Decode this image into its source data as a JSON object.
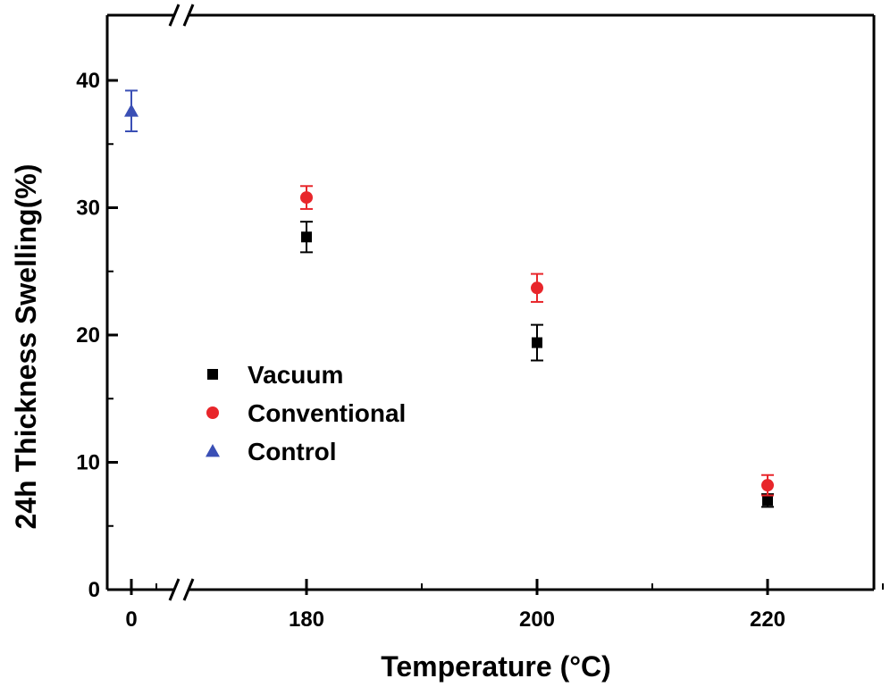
{
  "chart_data": {
    "type": "scatter",
    "title": "",
    "xlabel": "Temperature (°C)",
    "ylabel": "24h Thickness Swelling(%)",
    "ylim": [
      0,
      45
    ],
    "yticks": [
      0,
      10,
      20,
      30,
      40
    ],
    "xticks": [
      "0",
      "180",
      "200",
      "220"
    ],
    "axis_break": "between 0 and 180 on x-axis (top and bottom spines)",
    "legend_position": "middle-left",
    "series": [
      {
        "name": "Vacuum",
        "marker": "square",
        "color": "#000000",
        "points": [
          {
            "x": 180,
            "y": 27.7,
            "err": 1.2
          },
          {
            "x": 200,
            "y": 19.4,
            "err": 1.4
          },
          {
            "x": 220,
            "y": 7.0,
            "err": 0.5
          }
        ]
      },
      {
        "name": "Conventional",
        "marker": "circle",
        "color": "#e8262b",
        "points": [
          {
            "x": 180,
            "y": 30.8,
            "err": 0.9
          },
          {
            "x": 200,
            "y": 23.7,
            "err": 1.1
          },
          {
            "x": 220,
            "y": 8.2,
            "err": 0.8
          }
        ]
      },
      {
        "name": "Control",
        "marker": "triangle",
        "color": "#3a4fb5",
        "points": [
          {
            "x": 0,
            "y": 37.6,
            "err": 1.6
          }
        ]
      }
    ]
  }
}
